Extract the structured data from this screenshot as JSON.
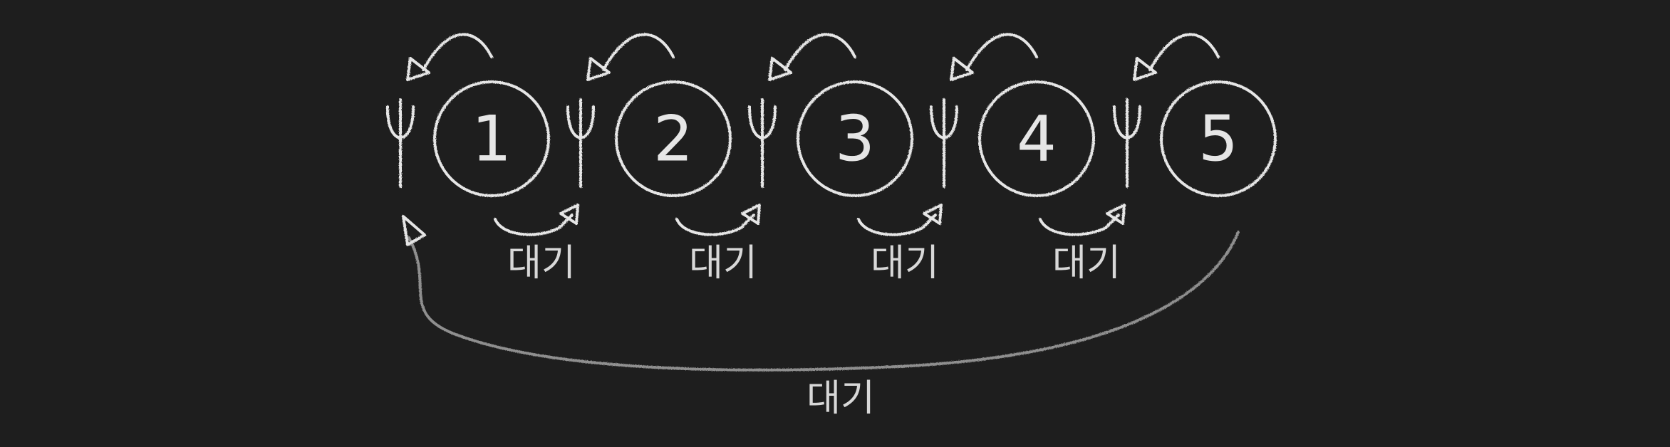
{
  "philosophers": [
    "1",
    "2",
    "3",
    "4",
    "5"
  ],
  "forks": 5,
  "wait_labels": [
    "대기",
    "대기",
    "대기",
    "대기"
  ],
  "bottom_wait_label": "대기",
  "colors": {
    "background": "#1e1e1e",
    "chalk": "#e6e6e6",
    "chalk_dim": "#8f8f8f"
  }
}
